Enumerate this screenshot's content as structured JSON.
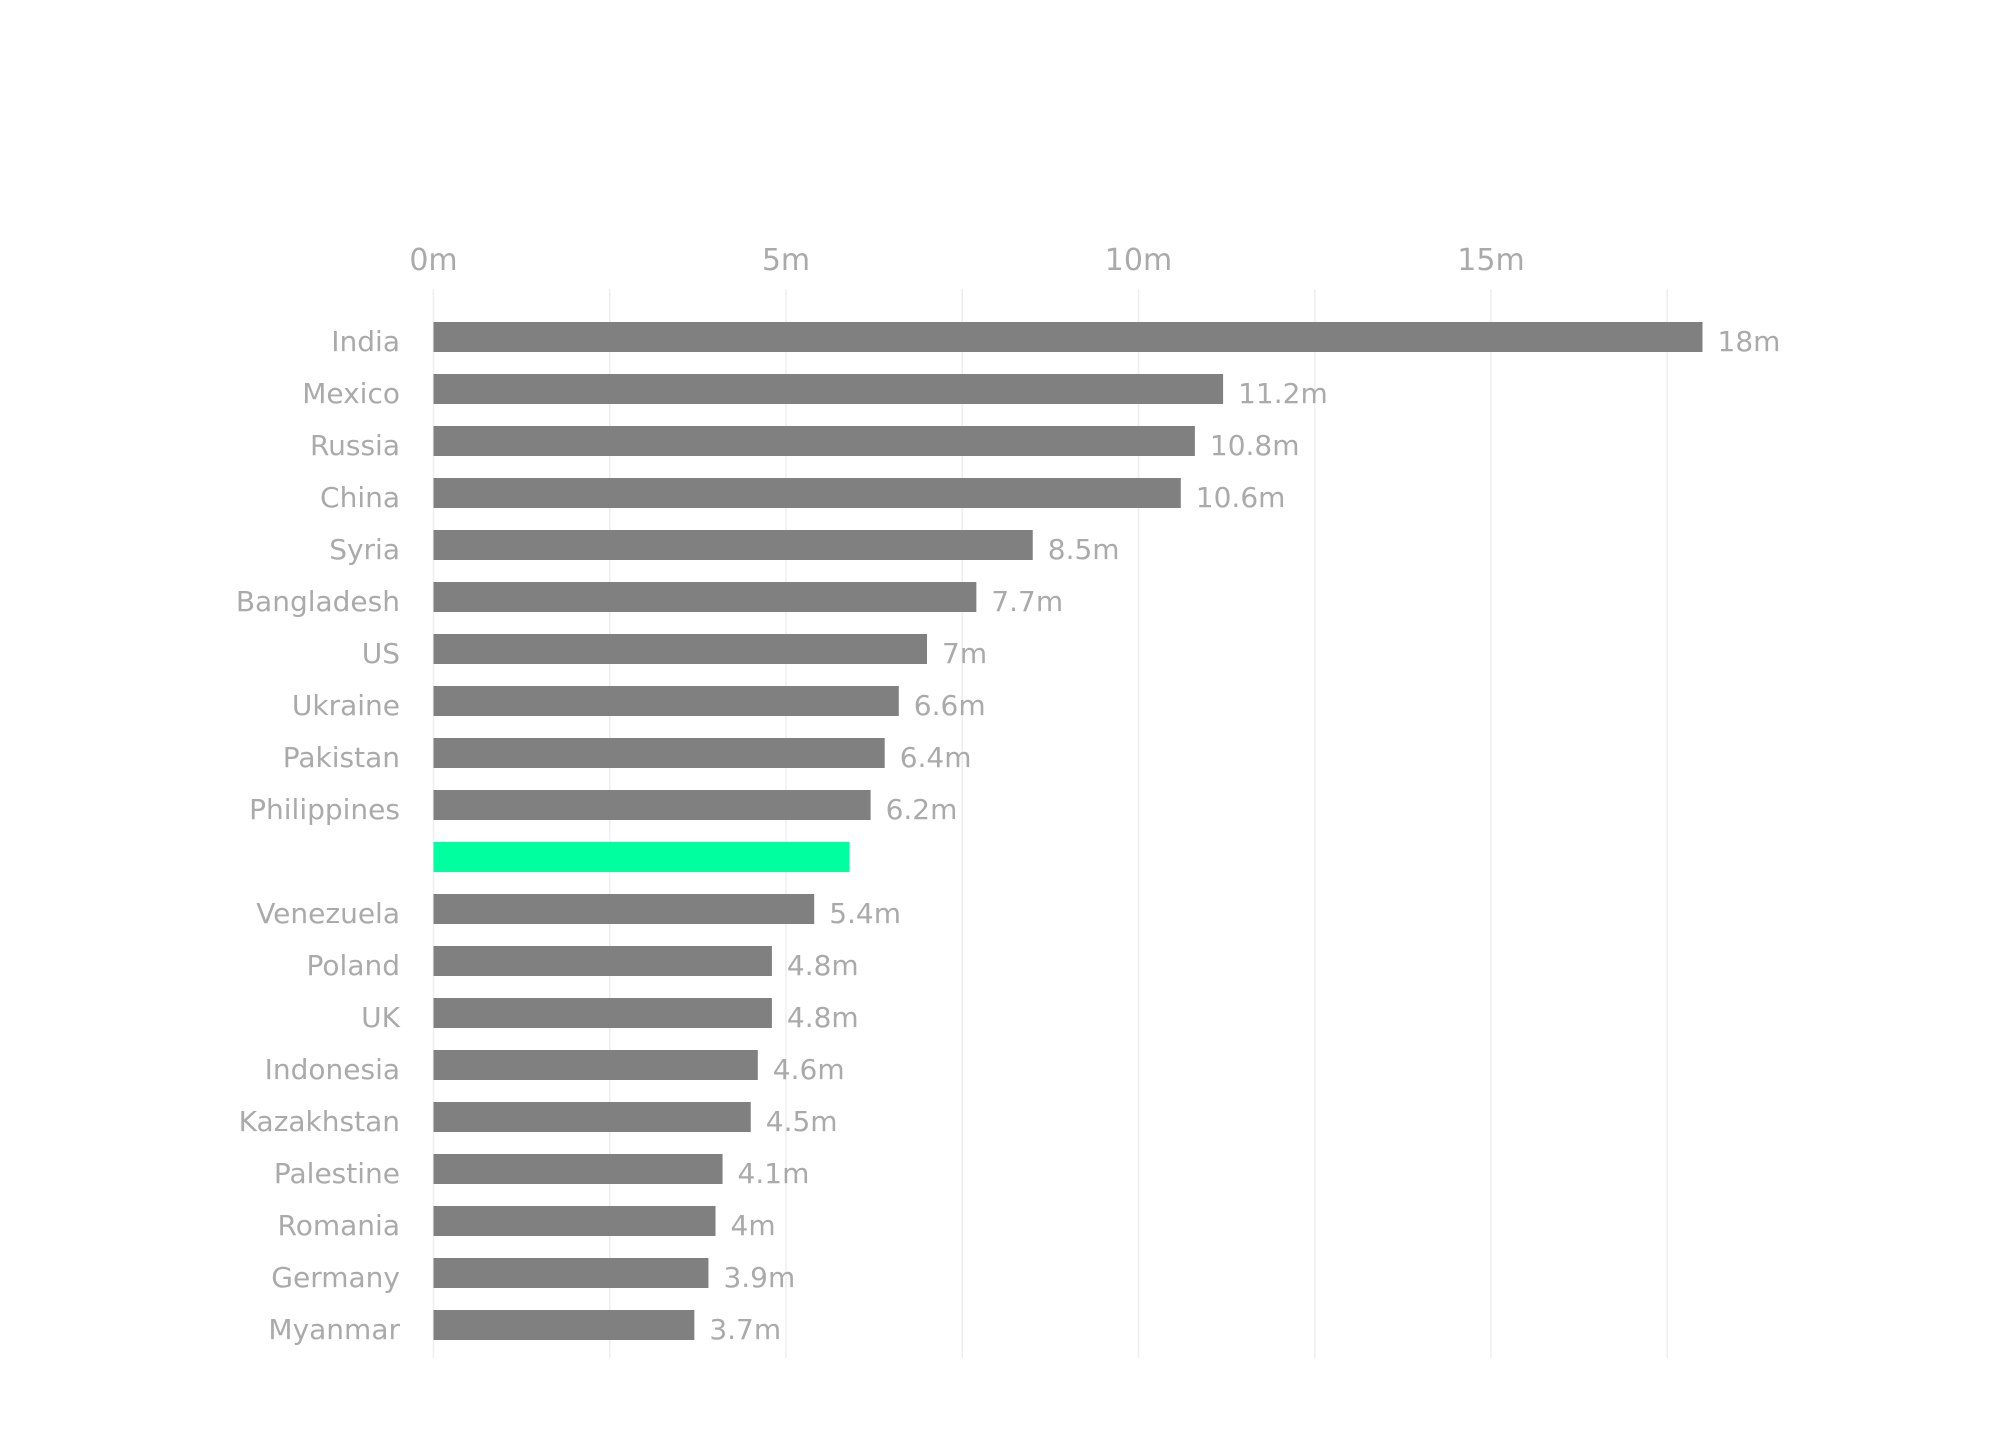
{
  "chart_data": {
    "type": "bar",
    "orientation": "horizontal",
    "title": "",
    "xlabel": "",
    "ylabel": "",
    "xlim": [
      0,
      18.5
    ],
    "x_ticks": [
      {
        "value": 0,
        "label": "0m"
      },
      {
        "value": 5,
        "label": "5m"
      },
      {
        "value": 10,
        "label": "10m"
      },
      {
        "value": 15,
        "label": "15m"
      }
    ],
    "gridlines": [
      0,
      2.5,
      5,
      7.5,
      10,
      12.5,
      15,
      17.5
    ],
    "grid": true,
    "legend": "none",
    "colors": {
      "bar": "#808080",
      "highlight": "#00FF9F",
      "text": "#aaaaaa",
      "grid": "#eeeeee"
    },
    "bars": [
      {
        "category": "India",
        "value": 18,
        "label": "18m",
        "highlight": false
      },
      {
        "category": "Mexico",
        "value": 11.2,
        "label": "11.2m",
        "highlight": false
      },
      {
        "category": "Russia",
        "value": 10.8,
        "label": "10.8m",
        "highlight": false
      },
      {
        "category": "China",
        "value": 10.6,
        "label": "10.6m",
        "highlight": false
      },
      {
        "category": "Syria",
        "value": 8.5,
        "label": "8.5m",
        "highlight": false
      },
      {
        "category": "Bangladesh",
        "value": 7.7,
        "label": "7.7m",
        "highlight": false
      },
      {
        "category": "US",
        "value": 7,
        "label": "7m",
        "highlight": false
      },
      {
        "category": "Ukraine",
        "value": 6.6,
        "label": "6.6m",
        "highlight": false
      },
      {
        "category": "Pakistan",
        "value": 6.4,
        "label": "6.4m",
        "highlight": false
      },
      {
        "category": "Philippines",
        "value": 6.2,
        "label": "6.2m",
        "highlight": false
      },
      {
        "category": "",
        "value": 5.9,
        "label": "",
        "highlight": true
      },
      {
        "category": "Venezuela",
        "value": 5.4,
        "label": "5.4m",
        "highlight": false
      },
      {
        "category": "Poland",
        "value": 4.8,
        "label": "4.8m",
        "highlight": false
      },
      {
        "category": "UK",
        "value": 4.8,
        "label": "4.8m",
        "highlight": false
      },
      {
        "category": "Indonesia",
        "value": 4.6,
        "label": "4.6m",
        "highlight": false
      },
      {
        "category": "Kazakhstan",
        "value": 4.5,
        "label": "4.5m",
        "highlight": false
      },
      {
        "category": "Palestine",
        "value": 4.1,
        "label": "4.1m",
        "highlight": false
      },
      {
        "category": "Romania",
        "value": 4,
        "label": "4m",
        "highlight": false
      },
      {
        "category": "Germany",
        "value": 3.9,
        "label": "3.9m",
        "highlight": false
      },
      {
        "category": "Myanmar",
        "value": 3.7,
        "label": "3.7m",
        "highlight": false
      }
    ]
  }
}
